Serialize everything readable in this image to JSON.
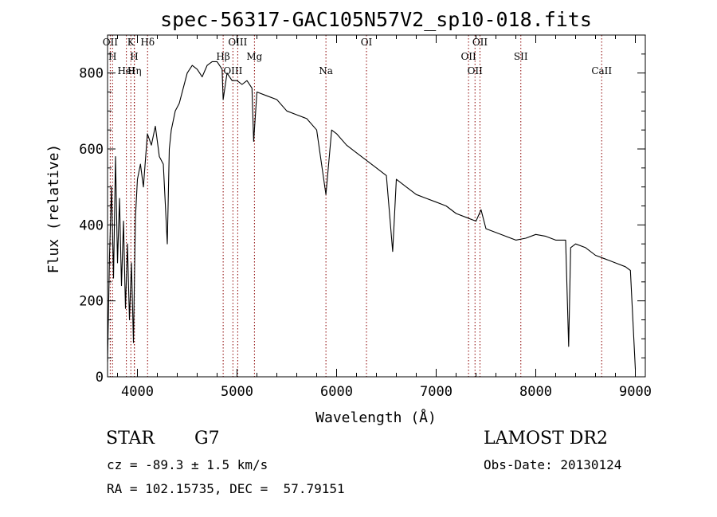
{
  "chart_data": {
    "type": "line",
    "title": "spec-56317-GAC105N57V2_sp10-018.fits",
    "xlabel": "Wavelength (Å)",
    "ylabel": "Flux (relative)",
    "xlim": [
      3700,
      9100
    ],
    "ylim": [
      0,
      900
    ],
    "xticks": [
      4000,
      5000,
      6000,
      7000,
      8000,
      9000
    ],
    "yticks": [
      0,
      200,
      400,
      600,
      800
    ],
    "grid": false,
    "legend": "none",
    "line_color": "#000000",
    "marker_color": "#8b0000",
    "series": [
      {
        "x": [
          3700,
          3720,
          3740,
          3760,
          3780,
          3800,
          3820,
          3840,
          3860,
          3880,
          3900,
          3920,
          3940,
          3960,
          3980,
          4000,
          4030,
          4060,
          4100,
          4140,
          4180,
          4220,
          4260,
          4300,
          4320,
          4340,
          4380,
          4420,
          4460,
          4500,
          4550,
          4600,
          4650,
          4700,
          4750,
          4800,
          4850,
          4861,
          4900,
          4950,
          5000,
          5050,
          5100,
          5150,
          5167,
          5200,
          5300,
          5400,
          5500,
          5600,
          5700,
          5800,
          5893,
          5950,
          6000,
          6100,
          6200,
          6300,
          6400,
          6500,
          6563,
          6600,
          6700,
          6800,
          6900,
          7000,
          7100,
          7200,
          7300,
          7400,
          7450,
          7500,
          7600,
          7700,
          7800,
          7900,
          8000,
          8100,
          8200,
          8300,
          8330,
          8350,
          8400,
          8500,
          8600,
          8700,
          8800,
          8900,
          8950,
          9000
        ],
        "y": [
          40,
          320,
          500,
          260,
          580,
          300,
          470,
          240,
          410,
          180,
          350,
          150,
          300,
          90,
          420,
          520,
          560,
          500,
          640,
          610,
          660,
          580,
          560,
          350,
          600,
          650,
          700,
          720,
          760,
          800,
          820,
          810,
          790,
          820,
          830,
          830,
          810,
          730,
          800,
          780,
          780,
          770,
          780,
          760,
          620,
          750,
          740,
          730,
          700,
          690,
          680,
          650,
          480,
          650,
          640,
          610,
          590,
          570,
          550,
          530,
          330,
          520,
          500,
          480,
          470,
          460,
          450,
          430,
          420,
          410,
          440,
          390,
          380,
          370,
          360,
          365,
          375,
          370,
          360,
          360,
          80,
          340,
          350,
          340,
          320,
          310,
          300,
          290,
          280,
          20
        ]
      }
    ],
    "line_markers": [
      {
        "wavelength": 3727,
        "label": "OII"
      },
      {
        "wavelength": 3750,
        "label": "H"
      },
      {
        "wavelength": 3889,
        "label": "HeI"
      },
      {
        "wavelength": 3934,
        "label": "K"
      },
      {
        "wavelength": 3968,
        "label": "H"
      },
      {
        "wavelength": 3970,
        "label": "Hη"
      },
      {
        "wavelength": 4102,
        "label": "Hδ"
      },
      {
        "wavelength": 4861,
        "label": "Hβ"
      },
      {
        "wavelength": 4959,
        "label": "OIII"
      },
      {
        "wavelength": 5007,
        "label": "OIII"
      },
      {
        "wavelength": 5175,
        "label": "Mg"
      },
      {
        "wavelength": 5893,
        "label": "Na"
      },
      {
        "wavelength": 6300,
        "label": "OI"
      },
      {
        "wavelength": 7325,
        "label": "OII"
      },
      {
        "wavelength": 7390,
        "label": "OII"
      },
      {
        "wavelength": 7440,
        "label": "OII"
      },
      {
        "wavelength": 7850,
        "label": "SII"
      },
      {
        "wavelength": 8662,
        "label": "CaII"
      }
    ]
  },
  "info": {
    "class": "STAR",
    "subclass": "G7",
    "survey": "LAMOST DR2",
    "cz": "cz = -89.3 ± 1.5 km/s",
    "obs_date": "Obs-Date: 20130124",
    "coords": "RA = 102.15735, DEC =  57.79151"
  }
}
